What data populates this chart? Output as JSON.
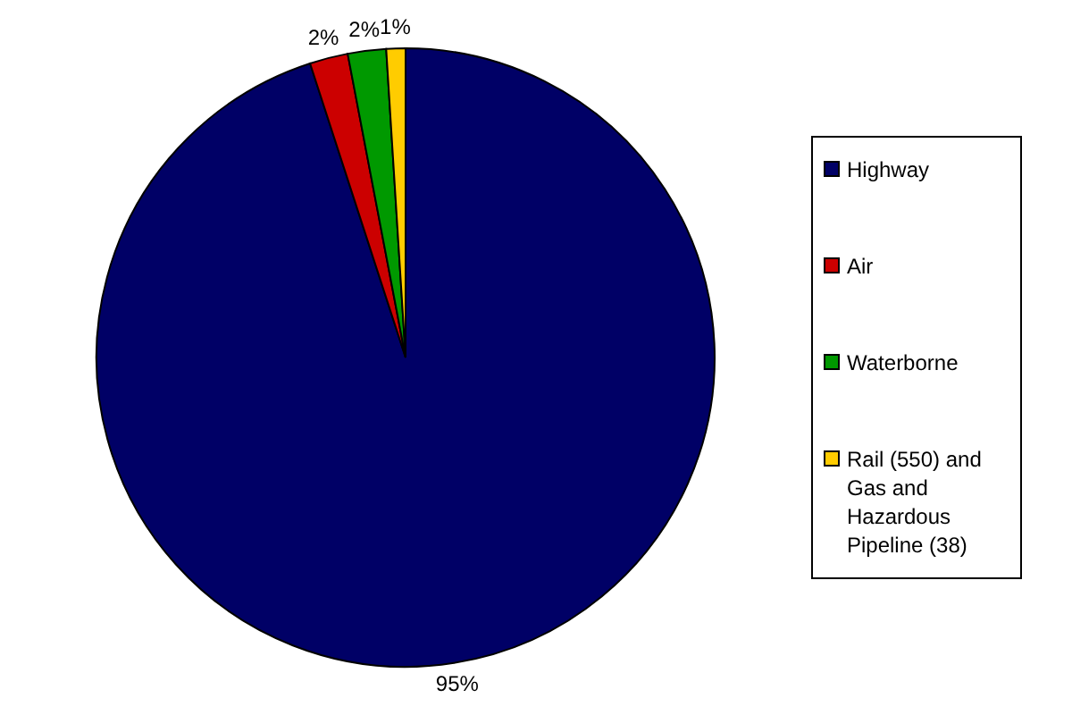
{
  "chart_data": {
    "type": "pie",
    "categories": [
      "Highway",
      "Air",
      "Waterborne",
      "Rail (550) and Gas and Hazardous Pipeline (38)"
    ],
    "values": [
      95,
      2,
      2,
      1
    ],
    "value_labels": [
      "95%",
      "2%",
      "2%",
      "1%"
    ],
    "colors": [
      "#000066",
      "#cc0000",
      "#009900",
      "#ffcc00"
    ],
    "legend": "right"
  }
}
